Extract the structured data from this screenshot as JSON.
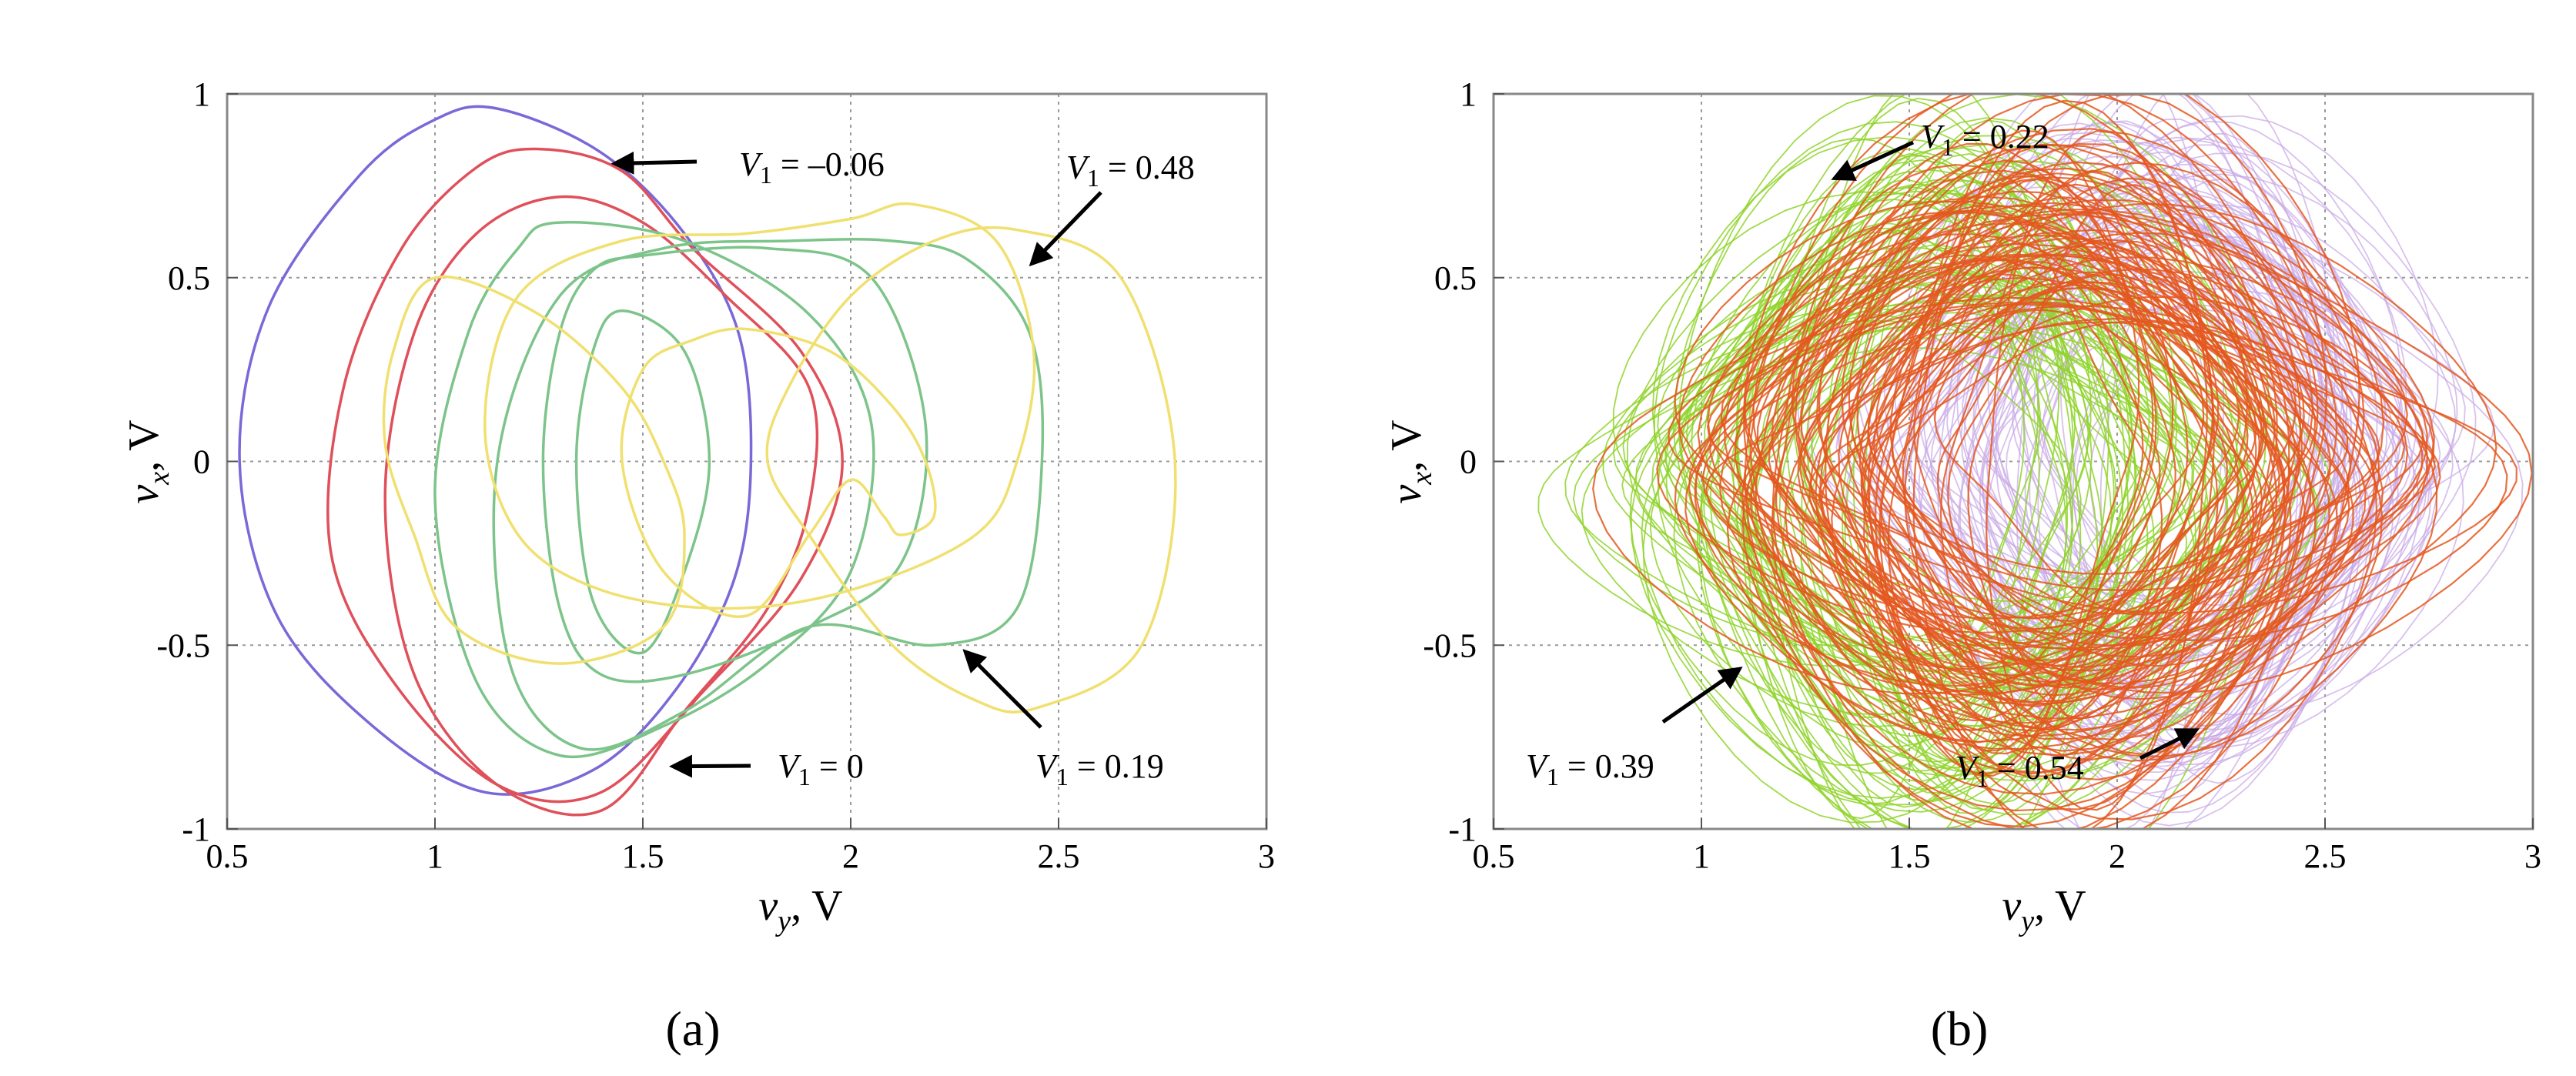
{
  "figure": {
    "panels": [
      {
        "label": "(a)",
        "xlabel": {
          "main": "v",
          "sub": "y",
          "unit": ", V"
        },
        "ylabel": {
          "main": "v",
          "sub": "x",
          "unit": ", V"
        },
        "annotations": [
          {
            "text": "V1 = –0.06",
            "pre": "V",
            "sub": "1",
            "post": " = –0.06",
            "target": [
              1.41,
              0.81
            ]
          },
          {
            "text": "V1 = 0.48",
            "pre": "V",
            "sub": "1",
            "post": " = 0.48",
            "target": [
              2.42,
              0.52
            ]
          },
          {
            "text": "V1 = 0",
            "pre": "V",
            "sub": "1",
            "post": " = 0",
            "target": [
              1.55,
              -0.83
            ]
          },
          {
            "text": "V1 = 0.19",
            "pre": "V",
            "sub": "1",
            "post": " = 0.19",
            "target": [
              2.26,
              -0.5
            ]
          }
        ]
      },
      {
        "label": "(b)",
        "xlabel": {
          "main": "v",
          "sub": "y",
          "unit": ", V"
        },
        "ylabel": {
          "main": "v",
          "sub": "x",
          "unit": ", V"
        },
        "annotations": [
          {
            "text": "V1 = 0.22",
            "pre": "V",
            "sub": "1",
            "post": " = 0.22",
            "target": [
              1.3,
              0.76
            ]
          },
          {
            "text": "V1 = 0.39",
            "pre": "V",
            "sub": "1",
            "post": " = 0.39",
            "target": [
              1.11,
              -0.55
            ]
          },
          {
            "text": "V1 = 0.54",
            "pre": "V",
            "sub": "1",
            "post": " = 0.54",
            "target": [
              2.21,
              -0.72
            ]
          }
        ]
      }
    ]
  },
  "chart_data": [
    {
      "type": "line",
      "title": "",
      "xlabel": "vy, V",
      "ylabel": "vx, V",
      "xlim": [
        0.5,
        3
      ],
      "ylim": [
        -1,
        1
      ],
      "xticks": [
        0.5,
        1,
        1.5,
        2,
        2.5,
        3
      ],
      "xtick_labels": [
        "0.5",
        "1",
        "1.5",
        "2",
        "2.5",
        "3"
      ],
      "yticks": [
        -1,
        -0.5,
        0,
        0.5,
        1
      ],
      "ytick_labels": [
        "-1",
        "-0.5",
        "0",
        "0.5",
        "1"
      ],
      "grid": true,
      "series": [
        {
          "color": "#7b68d8",
          "closed": true,
          "x": [
            1.15,
            1.4,
            1.6,
            1.73,
            1.76,
            1.72,
            1.58,
            1.38,
            1.12,
            0.85,
            0.62,
            0.53,
            0.6,
            0.82,
            1.0
          ],
          "y": [
            0.96,
            0.84,
            0.62,
            0.35,
            0.0,
            -0.32,
            -0.62,
            -0.84,
            -0.9,
            -0.72,
            -0.42,
            0.0,
            0.42,
            0.78,
            0.93
          ]
        },
        {
          "color": "#e0505a",
          "closed": true,
          "x": [
            1.25,
            1.45,
            1.62,
            1.88,
            1.98,
            1.88,
            1.65,
            1.4,
            1.15,
            0.9,
            0.75,
            0.78,
            0.92,
            1.1
          ],
          "y": [
            0.85,
            0.79,
            0.58,
            0.3,
            0.0,
            -0.32,
            -0.62,
            -0.9,
            -0.88,
            -0.6,
            -0.25,
            0.2,
            0.58,
            0.8
          ]
        },
        {
          "color": "#e0505a",
          "closed": true,
          "x": [
            1.3,
            1.5,
            1.7,
            1.9,
            1.9,
            1.8,
            1.6,
            1.4,
            1.15,
            0.95,
            0.88,
            0.95,
            1.1
          ],
          "y": [
            0.72,
            0.65,
            0.45,
            0.2,
            -0.12,
            -0.4,
            -0.68,
            -0.95,
            -0.88,
            -0.58,
            -0.1,
            0.35,
            0.62
          ]
        },
        {
          "color": "#7dc48a",
          "closed": true,
          "x": [
            1.3,
            1.6,
            1.9,
            2.05,
            2.0,
            1.8,
            1.55,
            1.3,
            1.1,
            1.0,
            1.08,
            1.2
          ],
          "y": [
            0.65,
            0.6,
            0.4,
            0.1,
            -0.3,
            -0.55,
            -0.72,
            -0.8,
            -0.6,
            -0.1,
            0.35,
            0.58
          ]
        },
        {
          "color": "#7dc48a",
          "closed": true,
          "x": [
            1.5,
            1.8,
            2.05,
            2.18,
            2.12,
            1.9,
            1.6,
            1.4,
            1.3,
            1.26,
            1.3,
            1.38
          ],
          "y": [
            0.56,
            0.58,
            0.5,
            0.1,
            -0.28,
            -0.45,
            -0.58,
            -0.58,
            -0.4,
            0.0,
            0.35,
            0.52
          ]
        },
        {
          "color": "#7dc48a",
          "closed": true,
          "x": [
            2.1,
            2.28,
            2.43,
            2.46,
            2.4,
            2.2,
            1.9,
            1.6,
            1.35,
            1.18,
            1.15,
            1.3,
            1.55,
            1.85
          ],
          "y": [
            0.6,
            0.55,
            0.35,
            0.0,
            -0.4,
            -0.5,
            -0.45,
            -0.68,
            -0.78,
            -0.55,
            0.0,
            0.45,
            0.58,
            0.6
          ]
        },
        {
          "color": "#7dc48a",
          "closed": true,
          "x": [
            1.45,
            1.6,
            1.66,
            1.6,
            1.5,
            1.38,
            1.34,
            1.38
          ],
          "y": [
            0.41,
            0.3,
            0.0,
            -0.3,
            -0.52,
            -0.38,
            0.0,
            0.3
          ]
        },
        {
          "color": "#f0e070",
          "closed": true,
          "x": [
            2.15,
            2.35,
            2.44,
            2.4,
            2.3,
            2.0,
            1.7,
            1.4,
            1.2,
            1.12,
            1.2,
            1.45,
            1.75,
            2.0
          ],
          "y": [
            0.7,
            0.6,
            0.3,
            0.0,
            -0.2,
            -0.35,
            -0.4,
            -0.35,
            -0.2,
            0.1,
            0.45,
            0.6,
            0.62,
            0.66
          ]
        },
        {
          "color": "#f0e070",
          "closed": true,
          "x": [
            2.4,
            2.65,
            2.78,
            2.7,
            2.45,
            2.3,
            2.1,
            1.9,
            1.8,
            1.85,
            2.0,
            2.2
          ],
          "y": [
            0.63,
            0.5,
            0.0,
            -0.5,
            -0.67,
            -0.65,
            -0.5,
            -0.2,
            0.0,
            0.2,
            0.45,
            0.6
          ]
        },
        {
          "color": "#f0e070",
          "closed": true,
          "x": [
            1.75,
            1.95,
            2.1,
            2.18,
            2.2,
            2.12,
            2.08,
            2.0,
            1.9,
            1.75,
            1.55,
            1.45,
            1.5,
            1.62
          ],
          "y": [
            0.36,
            0.3,
            0.15,
            0.0,
            -0.15,
            -0.2,
            -0.15,
            -0.05,
            -0.2,
            -0.42,
            -0.3,
            0.0,
            0.25,
            0.33
          ]
        },
        {
          "color": "#f0e070",
          "closed": true,
          "x": [
            1.0,
            1.25,
            1.45,
            1.55,
            1.6,
            1.55,
            1.3,
            1.05,
            0.95,
            0.88,
            0.9
          ],
          "y": [
            0.5,
            0.4,
            0.2,
            0.0,
            -0.2,
            -0.45,
            -0.55,
            -0.45,
            -0.2,
            0.05,
            0.3
          ]
        }
      ]
    },
    {
      "type": "scatter",
      "title": "",
      "xlabel": "vy, V",
      "ylabel": "vx, V",
      "xlim": [
        0.5,
        3
      ],
      "ylim": [
        -1,
        1
      ],
      "xticks": [
        0.5,
        1,
        1.5,
        2,
        2.5,
        3
      ],
      "xtick_labels": [
        "0.5",
        "1",
        "1.5",
        "2",
        "2.5",
        "3"
      ],
      "yticks": [
        -1,
        -0.5,
        0,
        0.5,
        1
      ],
      "ytick_labels": [
        "-1",
        "-0.5",
        "0",
        "0.5",
        "1"
      ],
      "grid": true,
      "series": [
        {
          "color": "#c7a6e6",
          "x_range": [
            1.4,
            2.82
          ],
          "y_range": [
            -0.75,
            0.81
          ]
        },
        {
          "color": "#8fd42a",
          "x_range": [
            0.8,
            2.35
          ],
          "y_range": [
            -0.85,
            0.75
          ]
        },
        {
          "color": "#e4571f",
          "x_range": [
            0.98,
            2.72
          ],
          "y_range": [
            -0.72,
            0.72
          ]
        }
      ]
    }
  ]
}
